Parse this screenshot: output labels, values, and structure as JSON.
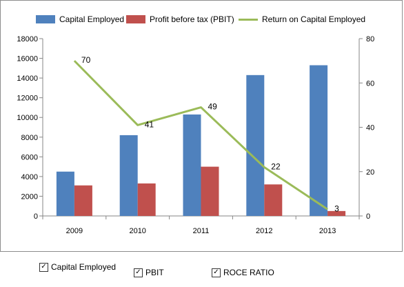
{
  "chart_data": {
    "type": "bar",
    "categories": [
      "2009",
      "2010",
      "2011",
      "2012",
      "2013"
    ],
    "series": [
      {
        "name": "Capital Employed",
        "type": "bar",
        "axis": "left",
        "color": "#4f81bd",
        "values": [
          4500,
          8200,
          10300,
          14300,
          15300
        ]
      },
      {
        "name": "Profit before tax (PBIT)",
        "type": "bar",
        "axis": "left",
        "color": "#c0504d",
        "values": [
          3100,
          3300,
          5000,
          3200,
          500
        ]
      },
      {
        "name": "Return on Capital  Employed",
        "type": "line",
        "axis": "right",
        "color": "#9bbb59",
        "values": [
          70,
          41,
          49,
          22,
          3
        ],
        "labels": [
          "70",
          "41",
          "49",
          "22",
          "3"
        ]
      }
    ],
    "y_left": {
      "min": 0,
      "max": 18000,
      "ticks": [
        "0",
        "2000",
        "4000",
        "6000",
        "8000",
        "10000",
        "12000",
        "14000",
        "16000",
        "18000"
      ]
    },
    "y_right": {
      "min": 0,
      "max": 80,
      "ticks": [
        "0",
        "20",
        "40",
        "60",
        "80"
      ]
    },
    "grid": false,
    "legend_position": "top"
  },
  "checkboxes": [
    {
      "label": "Capital Employed",
      "checked": true,
      "mark": "✓"
    },
    {
      "label": "PBIT",
      "checked": true,
      "mark": "✓"
    },
    {
      "label": "ROCE RATIO",
      "checked": true,
      "mark": "✓"
    }
  ]
}
